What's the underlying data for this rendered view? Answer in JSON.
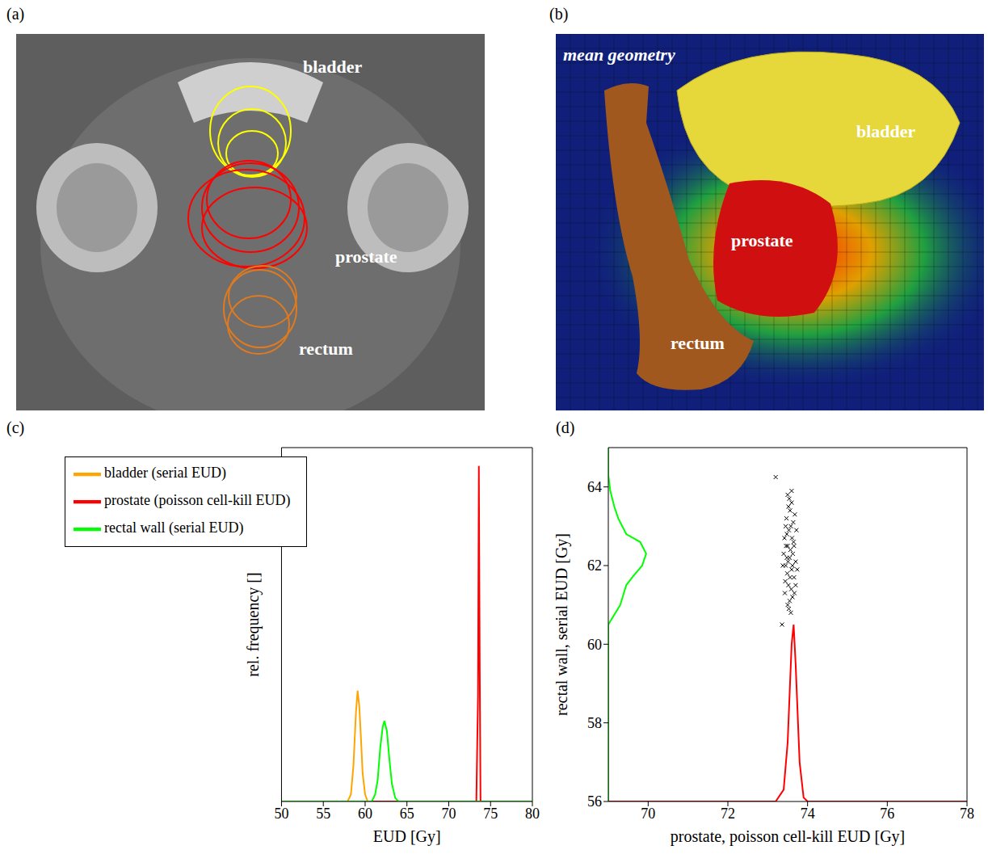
{
  "images": [
    {
      "panel_label": "(a)",
      "labels": [
        "bladder",
        "prostate",
        "rectum"
      ]
    },
    {
      "panel_label": "(b)",
      "title": "mean geometry",
      "labels": [
        "bladder",
        "prostate",
        "rectum"
      ]
    }
  ],
  "chart_data": [
    {
      "panel_label": "(c)",
      "type": "line",
      "xlabel": "EUD [Gy]",
      "ylabel": "rel. frequency []",
      "xlim": [
        50,
        80
      ],
      "xticks": [
        50,
        55,
        60,
        65,
        70,
        75,
        80
      ],
      "ylim": [
        0,
        1
      ],
      "tick_labels": "x",
      "legend": "upper left",
      "series": [
        {
          "name": "bladder (serial EUD)",
          "color": "#ffa500",
          "x": [
            50,
            57.9,
            58.3,
            58.6,
            58.9,
            59.1,
            59.3,
            59.5,
            59.7,
            60.0,
            60.3,
            80
          ],
          "values": [
            0,
            0,
            0.02,
            0.1,
            0.25,
            0.313,
            0.27,
            0.18,
            0.08,
            0.02,
            0,
            0
          ]
        },
        {
          "name": "prostate (poisson cell-kill EUD)",
          "color": "#ff0000",
          "x": [
            50,
            73.3,
            73.5,
            73.6,
            73.7,
            73.8,
            80
          ],
          "values": [
            0,
            0,
            0.3,
            0.948,
            0.4,
            0,
            0
          ]
        },
        {
          "name": "rectal wall (serial EUD)",
          "color": "#00ff00",
          "x": [
            50,
            60.8,
            61.2,
            61.5,
            61.8,
            62.1,
            62.3,
            62.6,
            62.9,
            63.2,
            63.6,
            64.0,
            80
          ],
          "values": [
            0,
            0,
            0.02,
            0.06,
            0.15,
            0.21,
            0.228,
            0.2,
            0.12,
            0.05,
            0.01,
            0,
            0
          ]
        }
      ]
    },
    {
      "panel_label": "(d)",
      "type": "scatter",
      "xlabel": "prostate, poisson cell-kill EUD [Gy]",
      "ylabel": "rectal wall, serial EUD [Gy]",
      "xlim": [
        69,
        78
      ],
      "xticks": [
        70,
        72,
        74,
        76,
        78
      ],
      "ylim": [
        56,
        65
      ],
      "yticks": [
        56,
        58,
        60,
        62,
        64
      ],
      "series": [
        {
          "type": "scatter",
          "color": "#000000",
          "marker": "x",
          "x": [
            73.55,
            73.5,
            73.6,
            73.45,
            73.65,
            73.58,
            73.52,
            73.62,
            73.48,
            73.7,
            73.4,
            73.56,
            73.6,
            73.5,
            73.66,
            73.44,
            73.72,
            73.53,
            73.57,
            73.63,
            73.47,
            73.68,
            73.42,
            73.59,
            73.54,
            73.51,
            73.61,
            73.49,
            73.74,
            73.38,
            73.55,
            73.64,
            73.46,
            73.58,
            73.66,
            73.52,
            73.43,
            73.7,
            73.5,
            73.62,
            73.56,
            73.48,
            73.6,
            73.53,
            73.67,
            73.45,
            73.2,
            73.36
          ],
          "values": [
            62.2,
            62.5,
            61.9,
            62.0,
            62.6,
            63.0,
            61.5,
            61.2,
            62.8,
            62.1,
            62.3,
            63.4,
            63.6,
            61.0,
            61.7,
            61.6,
            62.9,
            60.9,
            62.4,
            62.3,
            63.2,
            63.3,
            62.7,
            61.4,
            63.7,
            62.1,
            62.7,
            61.8,
            61.9,
            62.0,
            61.1,
            63.1,
            62.5,
            60.8,
            62.5,
            63.5,
            61.3,
            61.5,
            63.8,
            62.0,
            61.7,
            62.2,
            63.9,
            62.9,
            61.3,
            63.0,
            64.25,
            60.5
          ]
        },
        {
          "type": "line",
          "color": "#ff0000",
          "x": [
            69,
            73.2,
            73.4,
            73.5,
            73.6,
            73.65,
            73.7,
            73.8,
            73.9,
            74.0,
            78
          ],
          "values": [
            56,
            56,
            56.3,
            57.5,
            60.0,
            60.5,
            59.5,
            57.0,
            56.1,
            56,
            56
          ]
        },
        {
          "type": "line",
          "color": "#00ff00",
          "x": [
            69,
            69,
            69.3,
            69.45,
            69.6,
            69.85,
            69.95,
            69.8,
            69.45,
            69.25,
            69.15,
            69.05,
            69.0,
            69
          ],
          "values": [
            56,
            60.5,
            61,
            61.5,
            61.7,
            62,
            62.3,
            62.6,
            62.8,
            63.2,
            63.5,
            63.9,
            64.3,
            65
          ]
        }
      ]
    }
  ]
}
